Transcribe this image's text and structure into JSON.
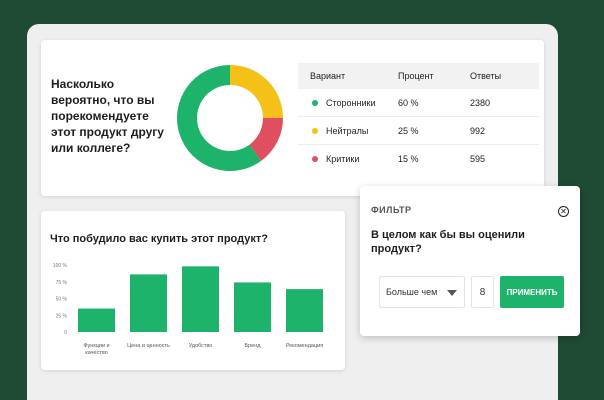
{
  "colors": {
    "promoters": "#1db36a",
    "neutrals": "#f5c018",
    "critics": "#e04f5f",
    "bar": "#1db36a",
    "apply_button": "#1db36a",
    "background": "#1f4a33"
  },
  "nps_card": {
    "question": "Насколько вероятно, что вы порекомендуете этот продукт другу или коллеге?",
    "table": {
      "headers": [
        "Вариант",
        "Процент",
        "Ответы"
      ],
      "rows": [
        {
          "label": "Сторонники",
          "percent": "60 %",
          "count": "2380"
        },
        {
          "label": "Нейтралы",
          "percent": "25 %",
          "count": "992"
        },
        {
          "label": "Критики",
          "percent": "15 %",
          "count": "595"
        }
      ]
    }
  },
  "bar_card": {
    "title": "Что побудило вас купить этот продукт?"
  },
  "filter": {
    "title": "ФИЛЬТР",
    "close_icon": "close-icon",
    "question": "В целом как бы вы оценили продукт?",
    "operator": "Больше чем",
    "value": "8",
    "apply_label": "ПРИМЕНИТЬ"
  },
  "chart_data": [
    {
      "type": "pie",
      "title": "",
      "categories": [
        "Сторонники",
        "Нейтралы",
        "Критики"
      ],
      "values": [
        60,
        25,
        15
      ]
    },
    {
      "type": "bar",
      "title": "Что побудило вас купить этот продукт?",
      "categories": [
        "Функции и качество",
        "Цена и ценность",
        "Удобство",
        "Бренд",
        "Рекомендация"
      ],
      "category_lines": [
        [
          "Функции и",
          "качество"
        ],
        [
          "Цена и ценность"
        ],
        [
          "Удобство"
        ],
        [
          "Бренд"
        ],
        [
          "Рекомендация"
        ]
      ],
      "values": [
        35,
        86,
        98,
        74,
        64
      ],
      "yticks": [
        "0",
        "25 %",
        "50 %",
        "75 %",
        "100 %"
      ],
      "ylim": [
        0,
        100
      ],
      "grid": false
    }
  ]
}
